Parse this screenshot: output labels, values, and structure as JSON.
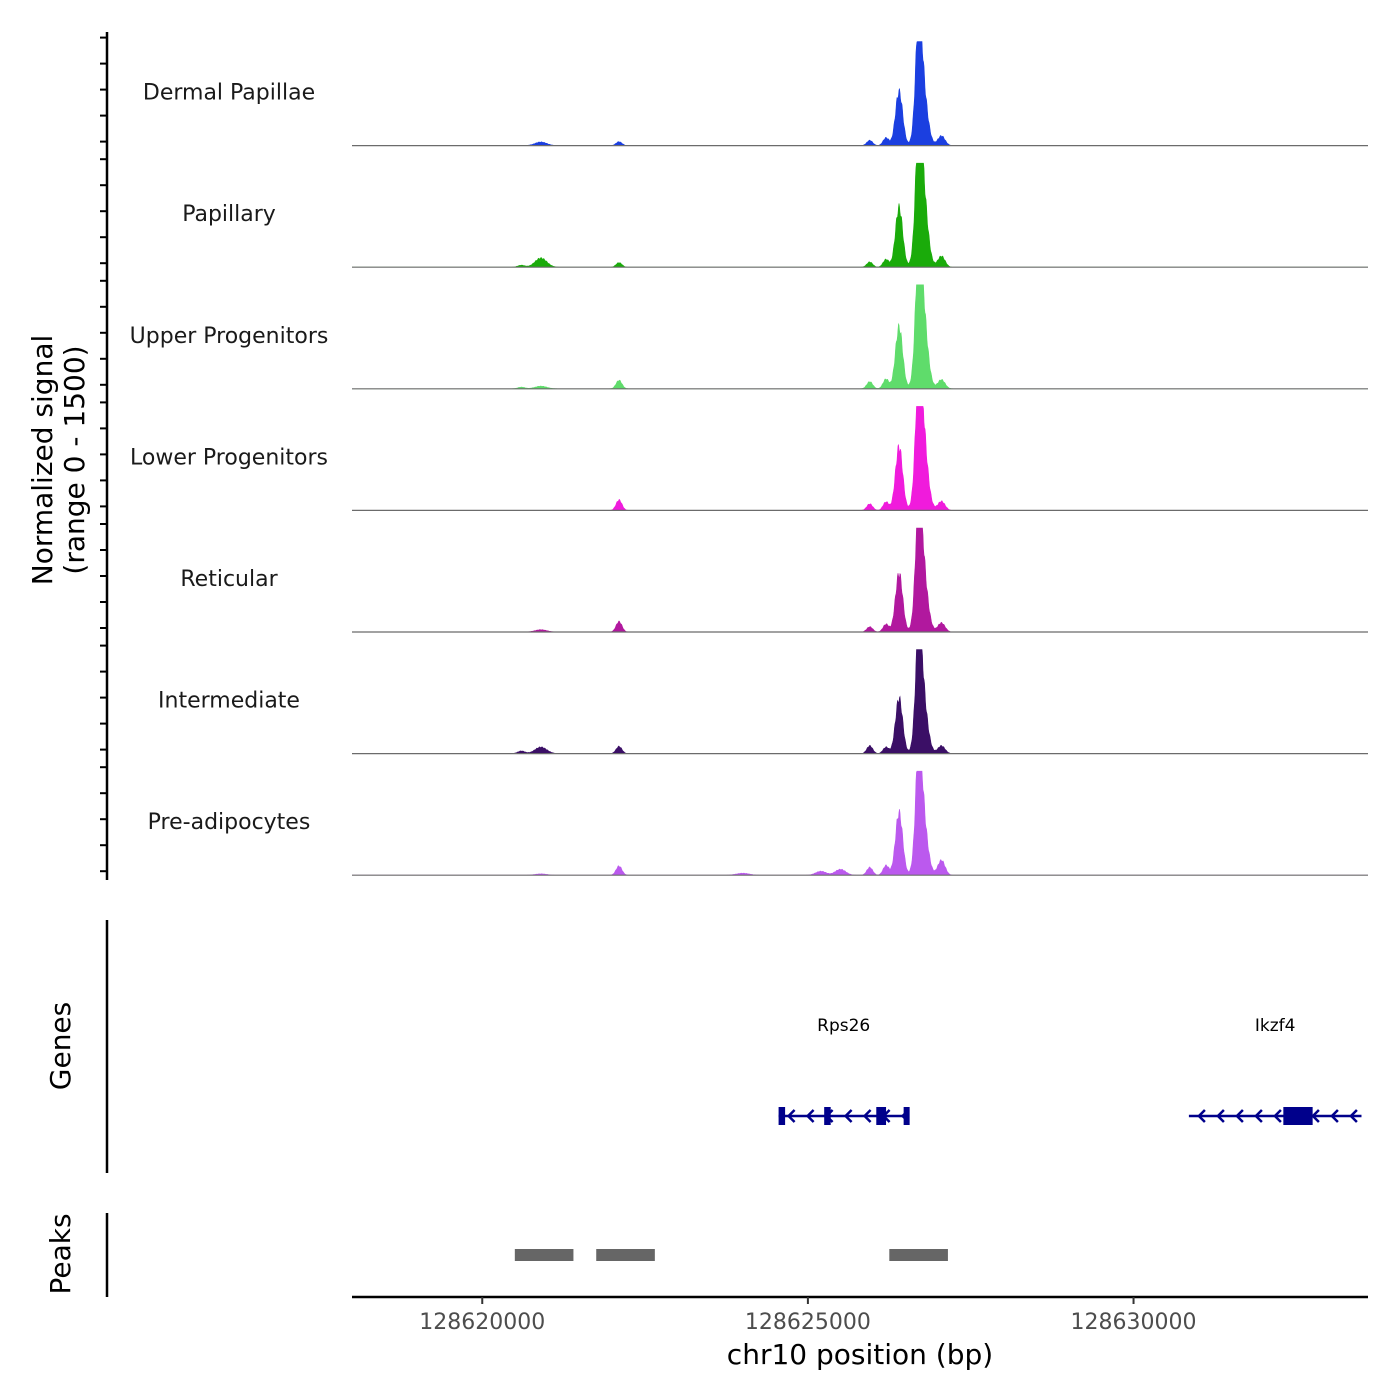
{
  "chart_data": {
    "type": "area",
    "title": "",
    "coverage_ylabel": [
      "Normalized signal",
      "(range 0 - 1500)"
    ],
    "ylim": [
      0,
      1500
    ],
    "xlabel": "chr10 position (bp)",
    "xlim": [
      128618000,
      128633600
    ],
    "x_ticks": [
      128620000,
      128625000,
      128630000
    ],
    "x_tick_labels": [
      "128620000",
      "128625000",
      "128630000"
    ],
    "tracks": [
      {
        "name": "Dermal Papillae",
        "color": "#1b3fe0"
      },
      {
        "name": "Papillary",
        "color": "#1aab0a"
      },
      {
        "name": "Upper Progenitors",
        "color": "#5fdc6b"
      },
      {
        "name": "Lower Progenitors",
        "color": "#f01bdc"
      },
      {
        "name": "Reticular",
        "color": "#b1189e"
      },
      {
        "name": "Intermediate",
        "color": "#3b0f66"
      },
      {
        "name": "Pre-adipocytes",
        "color": "#bb59ee"
      }
    ],
    "peak_components": [
      {
        "pos": 128626700,
        "width": 45,
        "heights": [
          1300,
          1300,
          1300,
          1300,
          1300,
          1300,
          1300
        ]
      },
      {
        "pos": 128626750,
        "width": 75,
        "heights": [
          1000,
          1350,
          1350,
          1350,
          1120,
          980,
          1020
        ]
      },
      {
        "pos": 128626400,
        "width": 55,
        "heights": [
          830,
          920,
          950,
          980,
          900,
          850,
          960
        ]
      },
      {
        "pos": 128626200,
        "width": 45,
        "heights": [
          120,
          120,
          150,
          130,
          120,
          100,
          150
        ]
      },
      {
        "pos": 128625950,
        "width": 45,
        "heights": [
          80,
          80,
          110,
          100,
          80,
          120,
          120
        ]
      },
      {
        "pos": 128627050,
        "width": 55,
        "heights": [
          150,
          170,
          140,
          140,
          140,
          120,
          230
        ]
      },
      {
        "pos": 128620900,
        "width": 90,
        "heights": [
          55,
          140,
          40,
          0,
          35,
          100,
          20
        ]
      },
      {
        "pos": 128622100,
        "width": 45,
        "heights": [
          60,
          70,
          130,
          160,
          160,
          110,
          140
        ]
      },
      {
        "pos": 128620600,
        "width": 55,
        "heights": [
          0,
          30,
          25,
          0,
          0,
          40,
          0
        ]
      },
      {
        "pos": 128625500,
        "width": 80,
        "heights": [
          0,
          0,
          0,
          0,
          0,
          0,
          90
        ]
      },
      {
        "pos": 128625200,
        "width": 80,
        "heights": [
          0,
          0,
          0,
          0,
          0,
          0,
          60
        ]
      },
      {
        "pos": 128624000,
        "width": 100,
        "heights": [
          0,
          0,
          0,
          0,
          0,
          0,
          30
        ]
      }
    ],
    "genes": [
      {
        "name": "Rps26",
        "strand": "-",
        "start": 128624550,
        "end": 128626550,
        "exons": [
          [
            128624550,
            128624650
          ],
          [
            128625250,
            128625350
          ],
          [
            128626050,
            128626200
          ],
          [
            128626470,
            128626530
          ]
        ]
      },
      {
        "name": "Ikzf4",
        "strand": "-",
        "start": 128630850,
        "end": 128633500,
        "exons": [
          [
            128632300,
            128632750
          ]
        ]
      }
    ],
    "genes_label": "Genes",
    "peaks_label": "Peaks",
    "peaks": [
      [
        128620500,
        128621400
      ],
      [
        128621750,
        128622650
      ],
      [
        128626250,
        128627150
      ]
    ]
  }
}
